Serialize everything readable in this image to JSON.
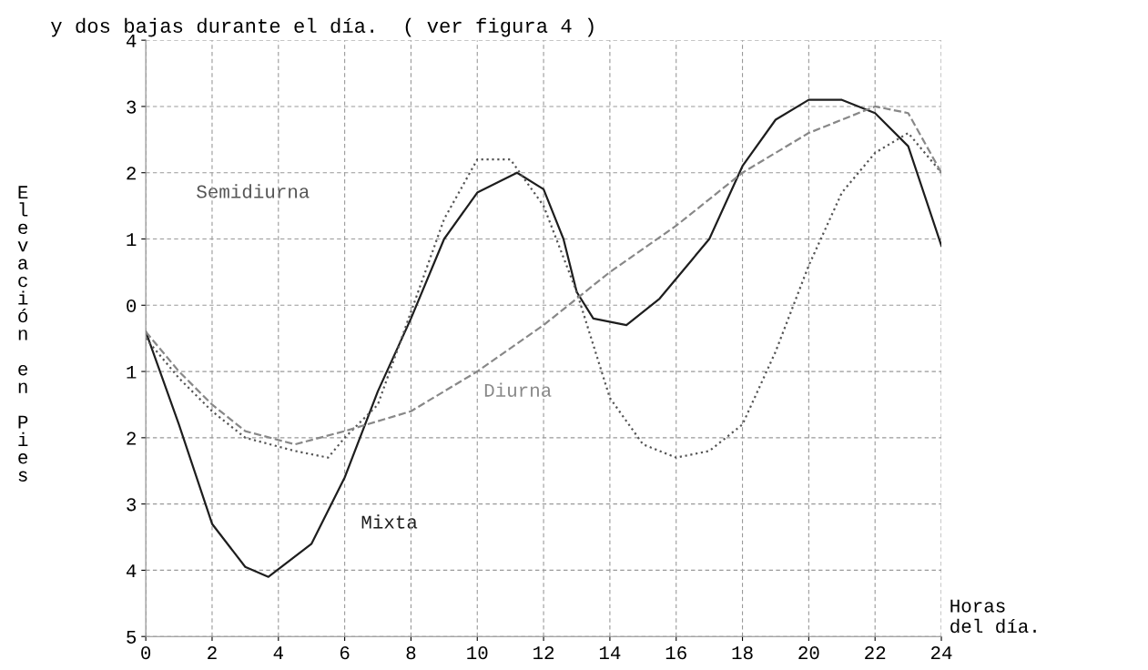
{
  "chart_data": {
    "type": "line",
    "title": "y dos bajas durante el día.  ( ver figura 4 )",
    "xlabel": "Horas\ndel día.",
    "ylabel": "Elevación en Pies",
    "xlim": [
      0,
      24
    ],
    "xticks": [
      0,
      2,
      4,
      6,
      8,
      10,
      12,
      14,
      16,
      18,
      20,
      22,
      24
    ],
    "ylim": [
      -5,
      4
    ],
    "yticks": [
      {
        "value": -5,
        "label": "5"
      },
      {
        "value": -4,
        "label": "4"
      },
      {
        "value": -3,
        "label": "3"
      },
      {
        "value": -2,
        "label": "2"
      },
      {
        "value": -1,
        "label": "1"
      },
      0,
      1,
      2,
      3,
      4
    ],
    "grid": true,
    "series": [
      {
        "name": "Mixta",
        "color": "#1e1e1e",
        "line_style": "solid",
        "x": [
          0,
          1,
          2,
          3,
          3.7,
          5,
          6,
          7,
          8,
          9,
          10,
          11.2,
          12,
          12.6,
          13,
          13.5,
          14.5,
          15.5,
          17,
          18,
          19,
          20,
          21,
          22,
          23,
          24
        ],
        "values": [
          -0.4,
          -1.8,
          -3.3,
          -3.95,
          -4.1,
          -3.6,
          -2.6,
          -1.3,
          -0.2,
          1.0,
          1.7,
          2.0,
          1.75,
          1.0,
          0.2,
          -0.2,
          -0.3,
          0.1,
          1.0,
          2.1,
          2.8,
          3.1,
          3.1,
          2.9,
          2.4,
          0.9
        ]
      },
      {
        "name": "Semidiurna",
        "color": "#555555",
        "line_style": "dotted",
        "x": [
          0,
          1,
          2,
          3,
          4.5,
          5.5,
          6,
          7,
          8,
          9,
          10,
          11,
          12,
          13,
          14,
          15,
          16,
          17,
          18,
          19,
          20,
          21,
          22,
          23,
          24
        ],
        "values": [
          -0.5,
          -1.1,
          -1.6,
          -2.0,
          -2.2,
          -2.3,
          -2.0,
          -1.5,
          -0.1,
          1.3,
          2.2,
          2.2,
          1.5,
          0.2,
          -1.4,
          -2.1,
          -2.3,
          -2.2,
          -1.8,
          -0.7,
          0.6,
          1.7,
          2.3,
          2.6,
          2.0
        ]
      },
      {
        "name": "Diurna",
        "color": "#888888",
        "line_style": "dashed",
        "x": [
          0,
          1,
          2,
          3,
          4.5,
          6,
          8,
          10,
          12,
          14,
          16,
          18,
          20,
          22,
          23,
          24
        ],
        "values": [
          -0.4,
          -1.0,
          -1.5,
          -1.9,
          -2.1,
          -1.9,
          -1.6,
          -1.0,
          -0.3,
          0.5,
          1.2,
          2.0,
          2.6,
          3.0,
          2.9,
          2.0
        ]
      }
    ]
  }
}
